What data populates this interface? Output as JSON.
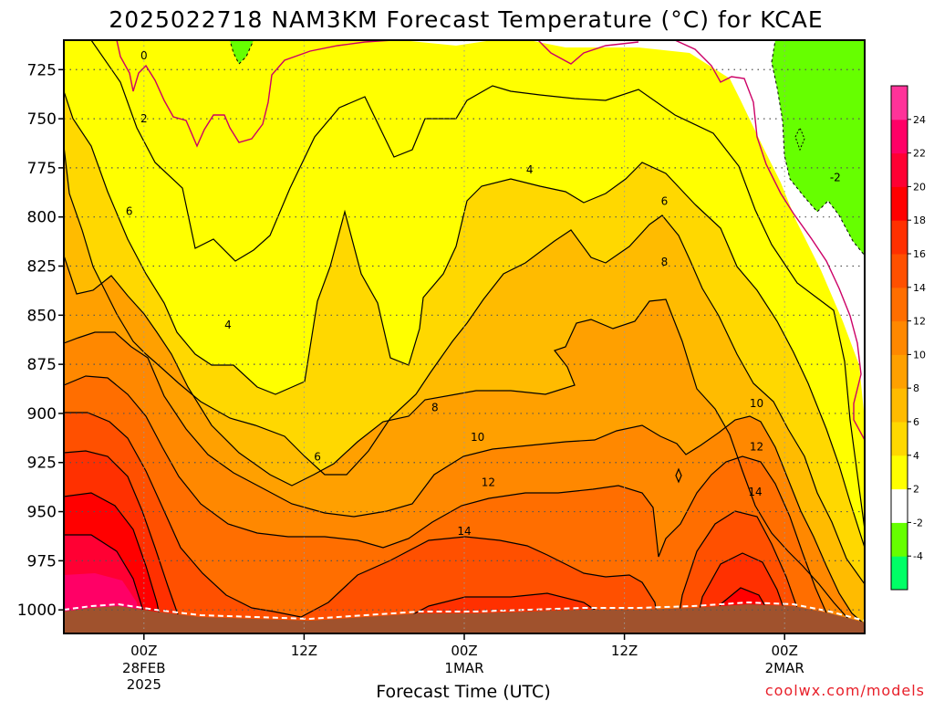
{
  "chart_data": {
    "type": "heatmap",
    "title": "2025022718 NAM3KM Forecast Temperature (°C) for KCAE",
    "xlabel": "Forecast Time (UTC)",
    "ylabel": "",
    "y_axis": {
      "ticks": [
        725,
        750,
        775,
        800,
        825,
        850,
        875,
        900,
        925,
        950,
        975,
        1000
      ],
      "range": [
        1012,
        710
      ],
      "unit": "hPa"
    },
    "x_axis": {
      "ticks": [
        {
          "hour": 6,
          "label": "00Z",
          "sub1": "28FEB",
          "sub2": "2025"
        },
        {
          "hour": 18,
          "label": "12Z",
          "sub1": "",
          "sub2": ""
        },
        {
          "hour": 30,
          "label": "00Z",
          "sub1": "1MAR",
          "sub2": ""
        },
        {
          "hour": 42,
          "label": "12Z",
          "sub1": "",
          "sub2": ""
        },
        {
          "hour": 54,
          "label": "00Z",
          "sub1": "2MAR",
          "sub2": ""
        }
      ],
      "range_hours": [
        0,
        60
      ]
    },
    "color_scale": {
      "levels": [
        -4,
        -2,
        2,
        4,
        6,
        8,
        10,
        12,
        14,
        16,
        18,
        20,
        22,
        24
      ],
      "colors": [
        "#00ff66",
        "#66ff00",
        "#ffffff",
        "#ffff00",
        "#ffd800",
        "#ffbb00",
        "#ffa000",
        "#ff8800",
        "#ff6e00",
        "#ff5000",
        "#ff3000",
        "#ff0000",
        "#ff0033",
        "#ff0066",
        "#ff3399"
      ]
    },
    "contour_labels": [
      {
        "value": "0",
        "hour": 6.0,
        "pressure": 718
      },
      {
        "value": "2",
        "hour": 6.0,
        "pressure": 750
      },
      {
        "value": "6",
        "hour": 4.9,
        "pressure": 797
      },
      {
        "value": "4",
        "hour": 12.3,
        "pressure": 855
      },
      {
        "value": "6",
        "hour": 19.0,
        "pressure": 922
      },
      {
        "value": "8",
        "hour": 27.8,
        "pressure": 897
      },
      {
        "value": "10",
        "hour": 31.0,
        "pressure": 912
      },
      {
        "value": "12",
        "hour": 31.8,
        "pressure": 935
      },
      {
        "value": "14",
        "hour": 30.0,
        "pressure": 960
      },
      {
        "value": "4",
        "hour": 34.9,
        "pressure": 776
      },
      {
        "value": "6",
        "hour": 45.0,
        "pressure": 792
      },
      {
        "value": "8",
        "hour": 45.0,
        "pressure": 823
      },
      {
        "value": "10",
        "hour": 51.9,
        "pressure": 895
      },
      {
        "value": "12",
        "hour": 51.9,
        "pressure": 917
      },
      {
        "value": "14",
        "hour": 51.8,
        "pressure": 940
      },
      {
        "value": "-2",
        "hour": 57.8,
        "pressure": 780
      }
    ],
    "legend": "right"
  },
  "watermark": "coolwx.com/models"
}
